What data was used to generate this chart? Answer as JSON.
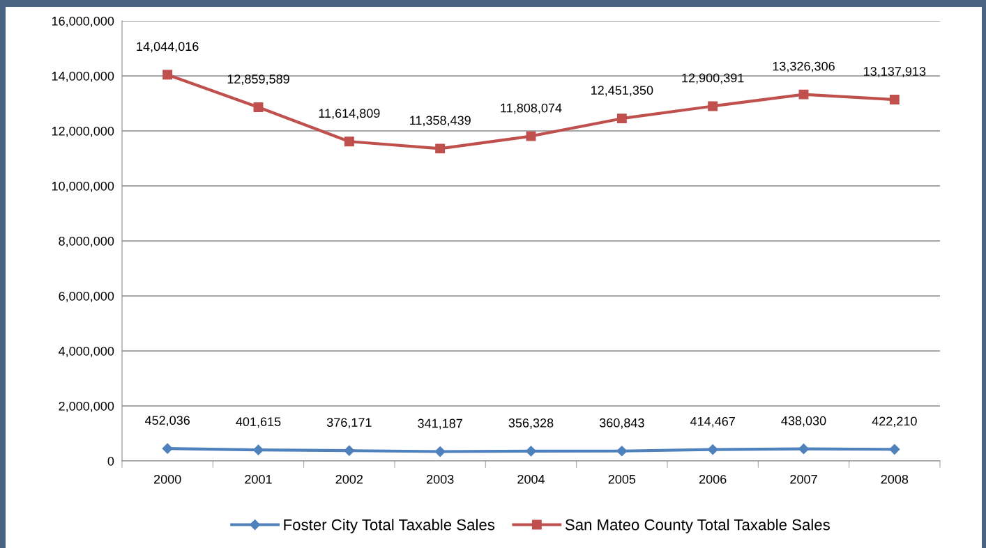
{
  "chart_data": {
    "type": "line",
    "categories": [
      "2000",
      "2001",
      "2002",
      "2003",
      "2004",
      "2005",
      "2006",
      "2007",
      "2008"
    ],
    "series": [
      {
        "name": "Foster City Total Taxable Sales",
        "color": "#4f81bd",
        "marker": "diamond",
        "values": [
          452036,
          401615,
          376171,
          341187,
          356328,
          360843,
          414467,
          438030,
          422210
        ],
        "value_labels": [
          "452,036",
          "401,615",
          "376,171",
          "341,187",
          "356,328",
          "360,843",
          "414,467",
          "438,030",
          "422,210"
        ]
      },
      {
        "name": "San Mateo County Total Taxable Sales",
        "color": "#c0504d",
        "marker": "square",
        "values": [
          14044016,
          12859589,
          11614809,
          11358439,
          11808074,
          12451350,
          12900391,
          13326306,
          13137913
        ],
        "value_labels": [
          "14,044,016",
          "12,859,589",
          "11,614,809",
          "11,358,439",
          "11,808,074",
          "12,451,350",
          "12,900,391",
          "13,326,306",
          "13,137,913"
        ]
      }
    ],
    "ylim": [
      0,
      16000000
    ],
    "yticks": [
      0,
      {
        "value": 2000000,
        "label": "2,000,000"
      },
      {
        "value": 4000000,
        "label": "4,000,000"
      },
      {
        "value": 6000000,
        "label": "6,000,000"
      },
      {
        "value": 8000000,
        "label": "8,000,000"
      },
      {
        "value": 10000000,
        "label": "10,000,000"
      },
      {
        "value": 12000000,
        "label": "12,000,000"
      },
      {
        "value": 14000000,
        "label": "14,000,000"
      },
      {
        "value": 16000000,
        "label": "16,000,000"
      }
    ],
    "grid": "y",
    "legend": "bottom",
    "line_style": "solid"
  }
}
